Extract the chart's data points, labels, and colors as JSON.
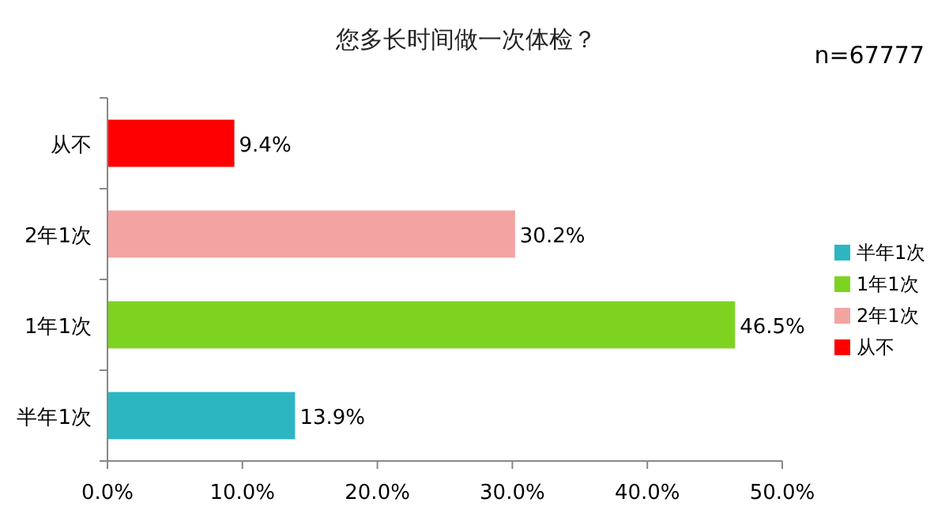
{
  "chart_data": {
    "type": "bar",
    "orientation": "horizontal",
    "stacked": true,
    "title": "您多长时间做一次体检？",
    "categories": [
      "从不",
      "2年1次",
      "1年1次",
      "半年1次"
    ],
    "series": [
      {
        "name": "半年1次",
        "color": "#2bb6c2",
        "values": [
          null,
          null,
          null,
          13.9
        ],
        "value_labels": [
          null,
          null,
          null,
          "13.9%"
        ]
      },
      {
        "name": "1年1次",
        "color": "#7ed321",
        "values": [
          null,
          null,
          46.5,
          null
        ],
        "value_labels": [
          null,
          null,
          "46.5%",
          null
        ]
      },
      {
        "name": "2年1次",
        "color": "#f4a3a3",
        "values": [
          null,
          30.2,
          null,
          null
        ],
        "value_labels": [
          null,
          "30.2%",
          null,
          null
        ]
      },
      {
        "name": "从不",
        "color": "#ff0000",
        "values": [
          9.4,
          null,
          null,
          null
        ],
        "value_labels": [
          "9.4%",
          null,
          null,
          null
        ]
      }
    ],
    "xlim": [
      0,
      50
    ],
    "xticks": [
      {
        "value": 0,
        "label": "0.0%"
      },
      {
        "value": 10,
        "label": "10.0%"
      },
      {
        "value": 20,
        "label": "20.0%"
      },
      {
        "value": 30,
        "label": "30.0%"
      },
      {
        "value": 40,
        "label": "40.0%"
      },
      {
        "value": 50,
        "label": "50.0%"
      }
    ],
    "legend": "right",
    "grid": false,
    "annotations": [
      "n=67777"
    ]
  }
}
